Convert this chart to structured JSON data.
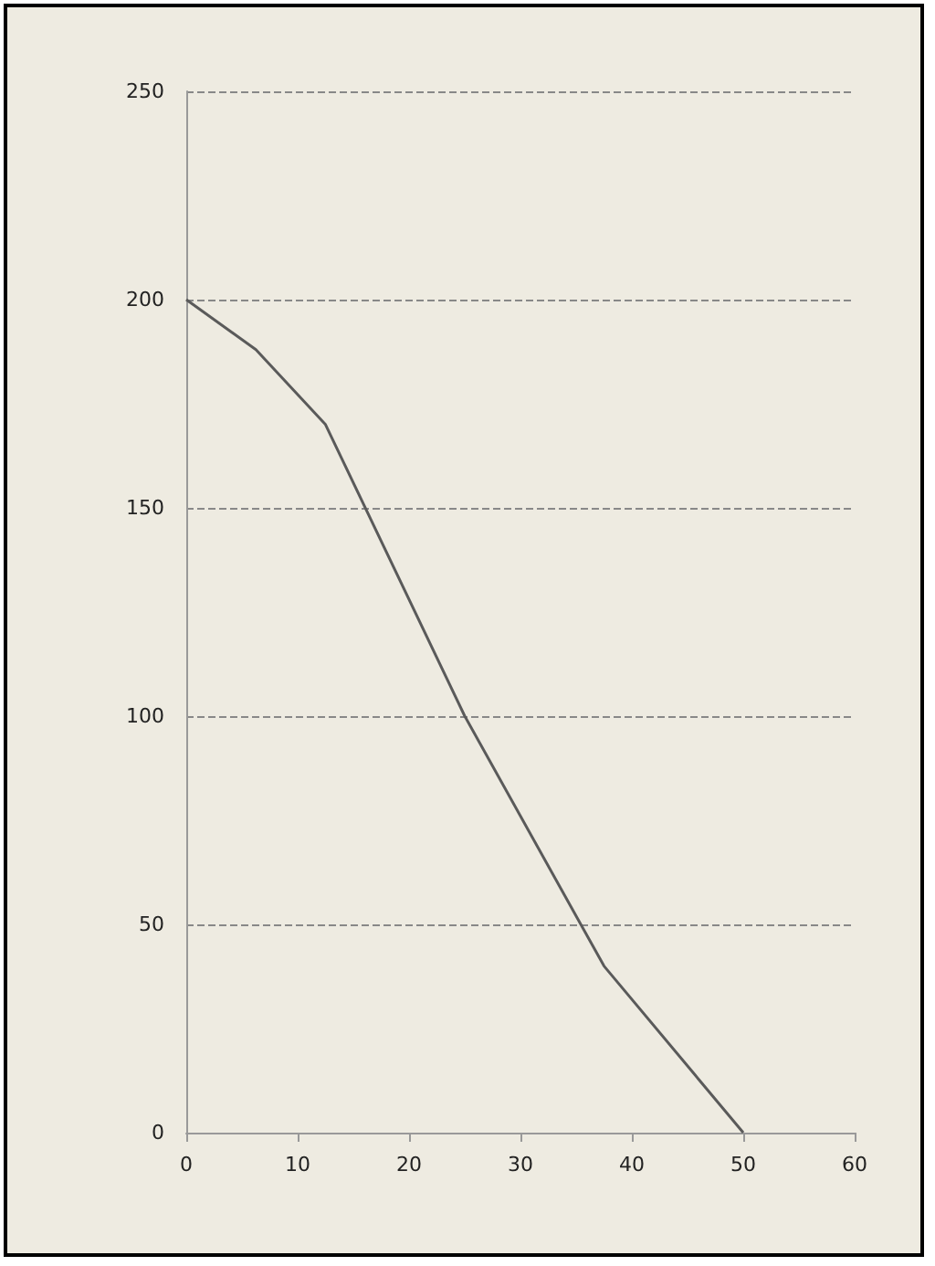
{
  "chart_data": {
    "type": "line",
    "x": [
      0,
      6.25,
      12.5,
      25,
      37.5,
      50
    ],
    "series": [
      {
        "color": "#5a5a5a",
        "values": [
          200,
          188,
          170,
          100,
          40,
          0
        ]
      }
    ],
    "xlim": [
      0,
      60
    ],
    "xticks": [
      0,
      10,
      20,
      30,
      40,
      50,
      60
    ],
    "ylim": [
      0,
      250
    ],
    "yticks": [
      0,
      50,
      100,
      150,
      200,
      250
    ],
    "grid": "y",
    "marker": "none",
    "line_style": "solid"
  }
}
